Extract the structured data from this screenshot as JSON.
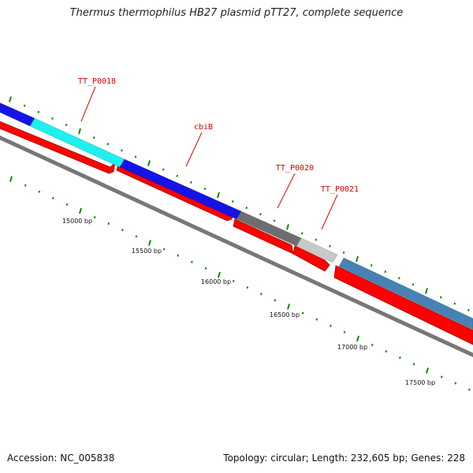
{
  "title": "Thermus thermophilus HB27 plasmid pTT27, complete sequence",
  "footer": {
    "accession": "Accession: NC_005838",
    "summary": "Topology: circular; Length: 232,605 bp; Genes: 228"
  },
  "colors": {
    "forward_cds": "#1414e6",
    "reverse_cds": "#ff0000",
    "gene_cyan": "#1ef0f0",
    "gene_dark_grey": "#6e6e6e",
    "gene_light_grey": "#c8c8c8",
    "gene_steel_blue": "#4682b4",
    "backbone": "#777777",
    "tick": "#118811",
    "label_red": "#dd0000"
  },
  "gene_labels": [
    {
      "name": "TT_P0018"
    },
    {
      "name": "cbiB"
    },
    {
      "name": "TT_P0020"
    },
    {
      "name": "TT_P0021"
    }
  ],
  "position_labels": [
    "15000 bp",
    "15500 bp",
    "16000 bp",
    "16500 bp",
    "17000 bp",
    "17500 bp"
  ]
}
